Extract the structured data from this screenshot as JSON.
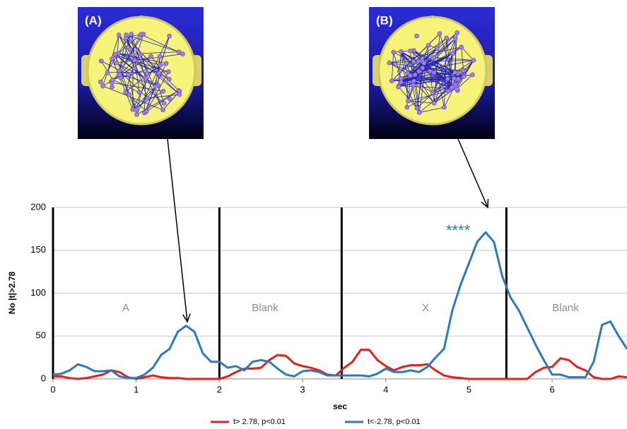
{
  "chart_data": {
    "type": "line",
    "panel_labels": [
      "(A)",
      "(B)"
    ],
    "region_labels": [
      "A",
      "Blank",
      "X",
      "Blank"
    ],
    "annotation": "****",
    "x_label": "sec",
    "y_label": "No |t|>2.78",
    "markers": [
      0,
      2,
      3.47,
      5.45
    ],
    "xlim": [
      0,
      6.9
    ],
    "xticks": [
      0,
      1,
      2,
      3,
      4,
      5,
      6
    ],
    "ylim": [
      0,
      200
    ],
    "yticks": [
      0,
      50,
      100,
      150,
      200
    ],
    "grid": true,
    "x": [
      0,
      0.1,
      0.2,
      0.3,
      0.4,
      0.5,
      0.6,
      0.7,
      0.8,
      0.9,
      1.0,
      1.1,
      1.2,
      1.3,
      1.4,
      1.5,
      1.6,
      1.7,
      1.8,
      1.9,
      2.0,
      2.1,
      2.2,
      2.3,
      2.4,
      2.5,
      2.6,
      2.7,
      2.8,
      2.9,
      3.0,
      3.1,
      3.2,
      3.3,
      3.4,
      3.5,
      3.6,
      3.7,
      3.8,
      3.9,
      4.0,
      4.1,
      4.2,
      4.3,
      4.4,
      4.5,
      4.6,
      4.7,
      4.8,
      4.9,
      5.0,
      5.1,
      5.2,
      5.3,
      5.4,
      5.5,
      5.6,
      5.7,
      5.8,
      5.9,
      6.0,
      6.1,
      6.2,
      6.3,
      6.4,
      6.5,
      6.6,
      6.7,
      6.8,
      6.9
    ],
    "series": [
      {
        "name": "t> 2.78, p<0.01",
        "color": "#e3211c",
        "values": [
          3,
          3,
          1,
          0,
          1,
          3,
          5,
          10,
          8,
          2,
          0,
          2,
          4,
          2,
          1,
          1,
          0,
          0,
          0,
          0,
          0,
          3,
          8,
          12,
          12,
          13,
          22,
          28,
          27,
          18,
          15,
          13,
          10,
          5,
          4,
          13,
          20,
          34,
          34,
          22,
          15,
          10,
          14,
          16,
          16,
          17,
          10,
          4,
          2,
          1,
          0,
          0,
          0,
          0,
          0,
          0,
          0,
          0,
          8,
          13,
          14,
          24,
          22,
          14,
          10,
          2,
          0,
          0,
          3,
          2
        ]
      },
      {
        "name": "t<-2.78, p<0.01",
        "color": "#2b7bba",
        "values": [
          5,
          6,
          10,
          17,
          14,
          9,
          9,
          10,
          3,
          1,
          1,
          5,
          13,
          28,
          35,
          55,
          62,
          55,
          30,
          20,
          20,
          13,
          15,
          10,
          20,
          22,
          20,
          12,
          5,
          3,
          9,
          10,
          8,
          4,
          4,
          4,
          4,
          4,
          3,
          6,
          12,
          8,
          8,
          10,
          8,
          14,
          25,
          35,
          80,
          110,
          135,
          160,
          171,
          160,
          120,
          95,
          80,
          60,
          40,
          22,
          5,
          5,
          2,
          2,
          2,
          20,
          63,
          67,
          50,
          35
        ]
      }
    ]
  }
}
